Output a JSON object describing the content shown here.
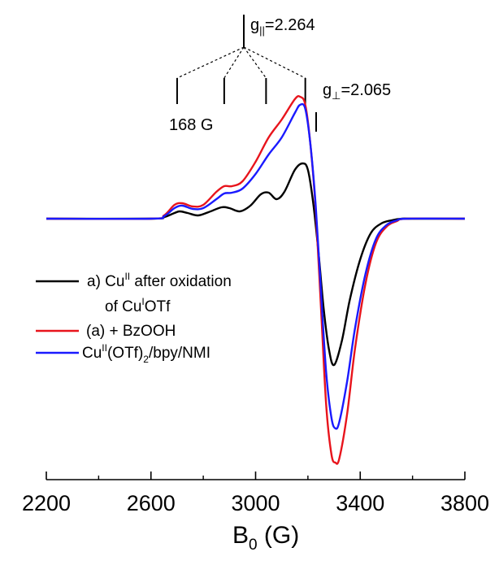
{
  "chart_data": {
    "type": "line",
    "xlabel": "B",
    "xlabel_sub": "0",
    "xlabel_unit": " (G)",
    "ylabel": "",
    "xlim": [
      2200,
      3800
    ],
    "xticks": [
      2200,
      2600,
      3000,
      3400,
      3800
    ],
    "xtick_labels": [
      "2200",
      "2600",
      "3000",
      "3400",
      "3800"
    ],
    "grid": false,
    "legend_position": "left",
    "legend": [
      {
        "key": "black",
        "line1": "a) Cu",
        "sup": "II",
        "line1_rest": " after oxidation",
        "line2_pre": "of Cu",
        "line2_sup": "I",
        "line2_rest": "OTf"
      },
      {
        "key": "red",
        "text": "(a) + BzOOH"
      },
      {
        "key": "blue",
        "text_pre": "Cu",
        "sup": "II",
        "text_mid": "(OTf)",
        "sub": "2",
        "text_post": "/bpy/NMI"
      }
    ],
    "annotations": {
      "g_parallel_pre": "g",
      "g_parallel_sub": "||",
      "g_parallel_val": "=2.264",
      "g_perp_pre": "g",
      "g_perp_sub": "⊥",
      "g_perp_val": "=2.065",
      "splitting": "168 G",
      "hyperfine_positions_G": [
        2700,
        2880,
        3040,
        3190
      ],
      "g_parallel_position_G": 3170,
      "g_perp_position_G": 3235
    },
    "series": [
      {
        "key": "black",
        "color": "#000000",
        "x": [
          2200,
          2600,
          2650,
          2690,
          2710,
          2740,
          2780,
          2820,
          2870,
          2900,
          2940,
          2980,
          3020,
          3050,
          3080,
          3110,
          3150,
          3180,
          3200,
          3220,
          3240,
          3260,
          3280,
          3300,
          3330,
          3360,
          3400,
          3440,
          3480,
          3520,
          3560,
          3600,
          3800
        ],
        "y": [
          0,
          0,
          2,
          7,
          9,
          7,
          4,
          8,
          14,
          13,
          9,
          16,
          30,
          32,
          24,
          33,
          60,
          68,
          60,
          20,
          -40,
          -110,
          -160,
          -180,
          -150,
          -100,
          -50,
          -18,
          -6,
          -2,
          0,
          0,
          0
        ]
      },
      {
        "key": "red",
        "color": "#e8141c",
        "x": [
          2200,
          2600,
          2650,
          2690,
          2720,
          2760,
          2800,
          2850,
          2880,
          2910,
          2950,
          3000,
          3050,
          3100,
          3150,
          3170,
          3190,
          3210,
          3230,
          3250,
          3270,
          3290,
          3305,
          3320,
          3350,
          3380,
          3420,
          3460,
          3500,
          3540,
          3580,
          3800
        ],
        "y": [
          0,
          0,
          4,
          17,
          19,
          15,
          17,
          33,
          40,
          40,
          46,
          70,
          100,
          122,
          147,
          150,
          140,
          90,
          10,
          -110,
          -230,
          -290,
          -300,
          -295,
          -240,
          -160,
          -80,
          -30,
          -10,
          -3,
          0,
          0
        ]
      },
      {
        "key": "blue",
        "color": "#1a1aff",
        "x": [
          2200,
          2600,
          2650,
          2690,
          2720,
          2760,
          2800,
          2850,
          2880,
          2910,
          2950,
          3000,
          3050,
          3100,
          3150,
          3170,
          3190,
          3210,
          3230,
          3250,
          3270,
          3290,
          3305,
          3320,
          3350,
          3380,
          3420,
          3460,
          3500,
          3540,
          3580,
          3800
        ],
        "y": [
          0,
          0,
          3,
          13,
          16,
          12,
          13,
          24,
          31,
          32,
          37,
          55,
          79,
          100,
          130,
          140,
          135,
          90,
          15,
          -90,
          -190,
          -245,
          -258,
          -250,
          -200,
          -135,
          -68,
          -25,
          -8,
          -2,
          0,
          0
        ]
      }
    ]
  }
}
